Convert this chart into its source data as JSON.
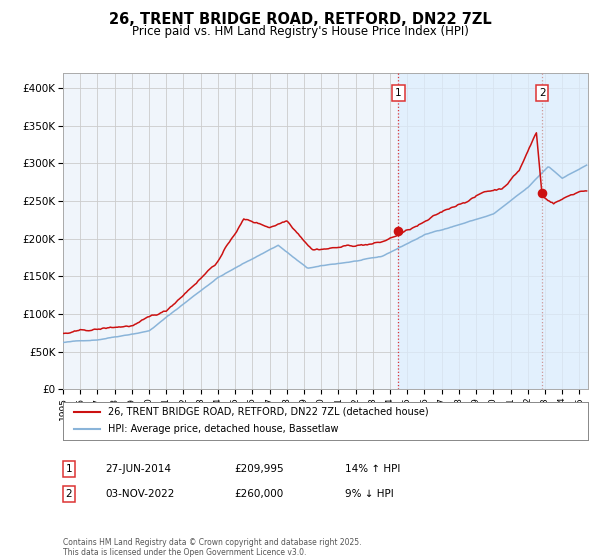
{
  "title": "26, TRENT BRIDGE ROAD, RETFORD, DN22 7ZL",
  "subtitle": "Price paid vs. HM Land Registry's House Price Index (HPI)",
  "xlim_start": 1995.0,
  "xlim_end": 2025.5,
  "ylim_min": 0,
  "ylim_max": 420000,
  "yticks": [
    0,
    50000,
    100000,
    150000,
    200000,
    250000,
    300000,
    350000,
    400000
  ],
  "ytick_labels": [
    "£0",
    "£50K",
    "£100K",
    "£150K",
    "£200K",
    "£250K",
    "£300K",
    "£350K",
    "£400K"
  ],
  "xtick_years": [
    1995,
    1996,
    1997,
    1998,
    1999,
    2000,
    2001,
    2002,
    2003,
    2004,
    2005,
    2006,
    2007,
    2008,
    2009,
    2010,
    2011,
    2012,
    2013,
    2014,
    2015,
    2016,
    2017,
    2018,
    2019,
    2020,
    2021,
    2022,
    2023,
    2024,
    2025
  ],
  "hpi_color": "#8ab4d9",
  "price_color": "#cc1111",
  "vline1_color": "#dd3333",
  "vline2_color": "#cc9999",
  "shade_color": "#ddeeff",
  "grid_color": "#cccccc",
  "marker1_date": 2014.49,
  "marker1_price": 209995,
  "marker2_date": 2022.84,
  "marker2_price": 260000,
  "legend_line1": "26, TRENT BRIDGE ROAD, RETFORD, DN22 7ZL (detached house)",
  "legend_line2": "HPI: Average price, detached house, Bassetlaw",
  "info1_date": "27-JUN-2014",
  "info1_price": "£209,995",
  "info1_hpi": "14% ↑ HPI",
  "info2_date": "03-NOV-2022",
  "info2_price": "£260,000",
  "info2_hpi": "9% ↓ HPI",
  "footer": "Contains HM Land Registry data © Crown copyright and database right 2025.\nThis data is licensed under the Open Government Licence v3.0.",
  "background_color": "#ffffff",
  "plot_bg_color": "#f0f5fb"
}
